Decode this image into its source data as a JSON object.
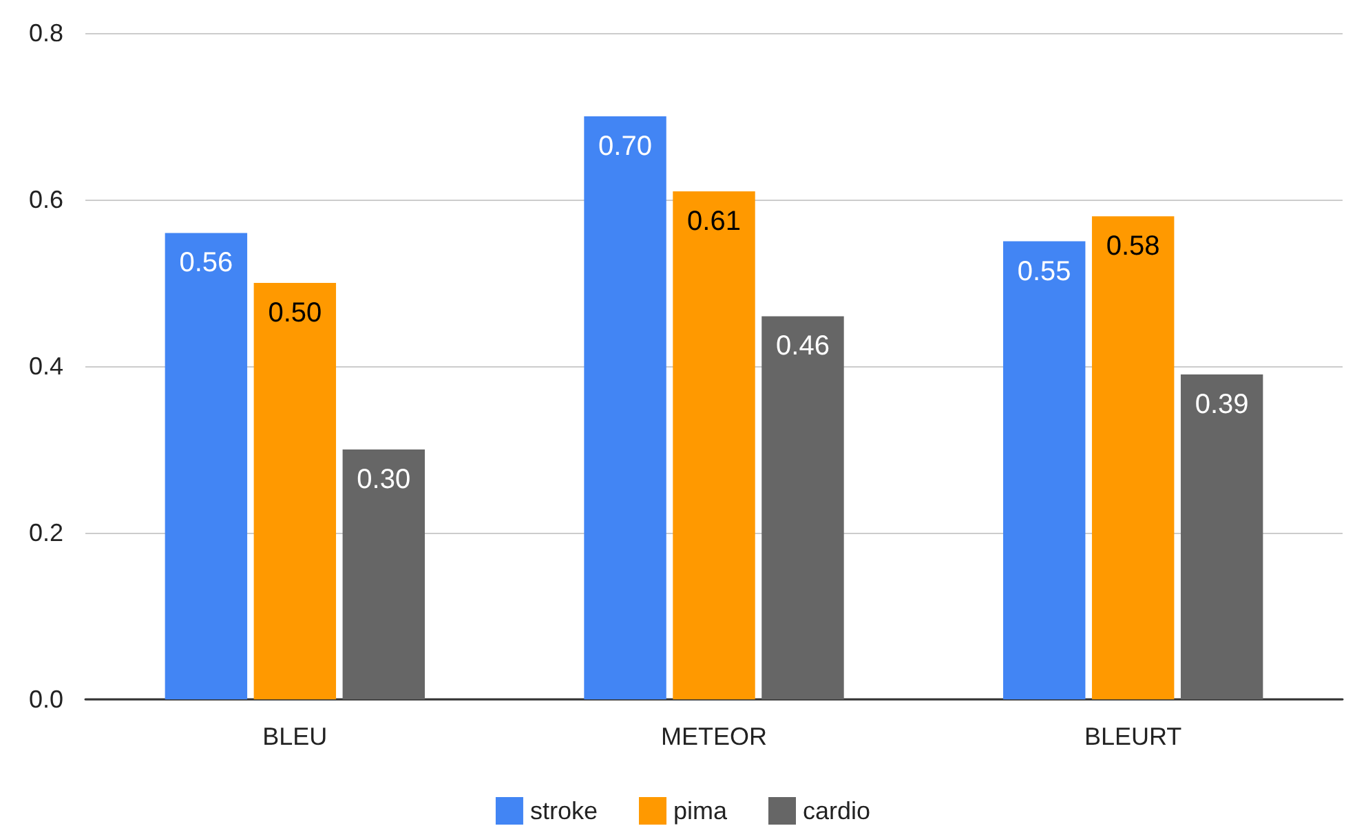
{
  "chart_data": {
    "type": "bar",
    "categories": [
      "BLEU",
      "METEOR",
      "BLEURT"
    ],
    "series": [
      {
        "name": "stroke",
        "color": "#4285f4",
        "values": [
          0.56,
          0.7,
          0.55
        ],
        "value_labels": [
          "0.56",
          "0.70",
          "0.55"
        ]
      },
      {
        "name": "pima",
        "color": "#ff9900",
        "values": [
          0.5,
          0.61,
          0.58
        ],
        "value_labels": [
          "0.50",
          "0.61",
          "0.58"
        ]
      },
      {
        "name": "cardio",
        "color": "#666666",
        "values": [
          0.3,
          0.46,
          0.39
        ],
        "value_labels": [
          "0.30",
          "0.46",
          "0.39"
        ]
      }
    ],
    "ylim": [
      0,
      0.8
    ],
    "yticks": [
      {
        "value": 0,
        "label": "0.0"
      },
      {
        "value": 0.2,
        "label": "0.2"
      },
      {
        "value": 0.4,
        "label": "0.4"
      },
      {
        "value": 0.6,
        "label": "0.6"
      },
      {
        "value": 0.8,
        "label": "0.8"
      }
    ],
    "grid": "y",
    "legend": "bottom"
  }
}
